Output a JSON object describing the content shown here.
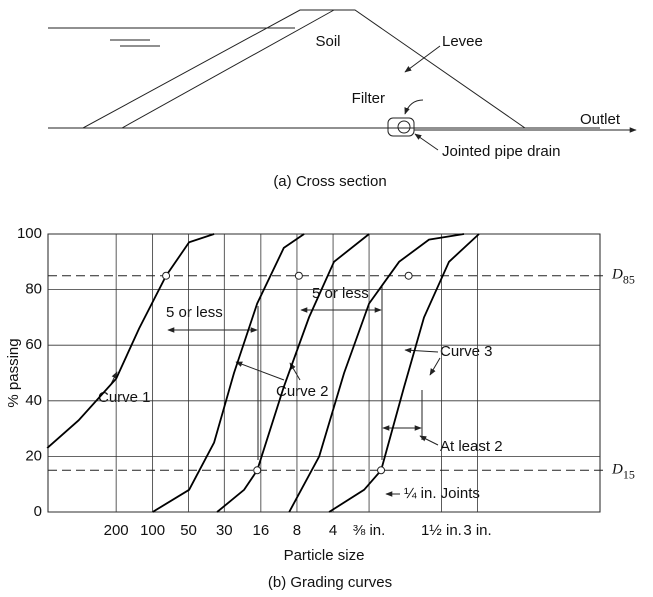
{
  "cross_section": {
    "labels": {
      "soil": "Soil",
      "levee": "Levee",
      "filter": "Filter",
      "outlet": "Outlet",
      "drain": "Jointed pipe drain"
    },
    "caption": "(a) Cross section"
  },
  "chart_data": {
    "type": "line",
    "xscale": "log",
    "grid": true,
    "color": "#000",
    "ylabel": "% passing",
    "xlabel": "Particle size",
    "caption": "(b) Grading curves",
    "xlim": [
      0.02,
      800
    ],
    "ylim": [
      0,
      100
    ],
    "yticks": [
      0,
      20,
      40,
      60,
      80,
      100
    ],
    "xticks": [
      {
        "value": 0.074,
        "label": "200"
      },
      {
        "value": 0.149,
        "label": "100"
      },
      {
        "value": 0.297,
        "label": "50"
      },
      {
        "value": 0.59,
        "label": "30"
      },
      {
        "value": 1.19,
        "label": "16"
      },
      {
        "value": 2.38,
        "label": "8"
      },
      {
        "value": 4.76,
        "label": "4"
      },
      {
        "value": 9.5,
        "label": "⅜ in."
      },
      {
        "value": 38.1,
        "label": "1½ in."
      },
      {
        "value": 76.2,
        "label": "3 in."
      }
    ],
    "series": [
      {
        "color": "#000",
        "x": [
          0.0197,
          0.036,
          0.074,
          0.115,
          0.193,
          0.3,
          0.485
        ],
        "values": [
          23,
          33,
          48,
          66,
          85,
          97,
          100
        ]
      },
      {
        "color": "#000",
        "x": [
          0.149,
          0.3,
          0.485,
          0.711,
          1.11,
          1.85,
          2.73
        ],
        "values": [
          0,
          8,
          25,
          50,
          75,
          95,
          100
        ]
      },
      {
        "color": "#000",
        "x": [
          0.514,
          0.863,
          1.11,
          1.85,
          3.0,
          4.85,
          9.5
        ],
        "values": [
          0,
          8,
          15,
          45,
          70,
          90,
          100
        ]
      },
      {
        "color": "#000",
        "x": [
          2.05,
          3.65,
          5.88,
          9.5,
          16.9,
          30.0,
          58.8
        ],
        "values": [
          0,
          20,
          50,
          75,
          90,
          98,
          100
        ]
      },
      {
        "color": "#000",
        "x": [
          4.41,
          8.63,
          11.96,
          18.6,
          27.3,
          44.1,
          78.4
        ],
        "values": [
          0,
          8,
          15,
          45,
          70,
          90,
          100
        ]
      }
    ],
    "markers": {
      "x": [
        0.193,
        2.47,
        1.11,
        20.3,
        11.96
      ],
      "y": [
        85,
        85,
        15,
        85,
        15
      ]
    },
    "reference_lines": [
      {
        "value": 85,
        "symbol": "D",
        "subscript": "85"
      },
      {
        "value": 15,
        "symbol": "D",
        "subscript": "15"
      }
    ],
    "annotations": [
      "Curve 1",
      "Curve 2",
      "Curve 3",
      "5 or less",
      "5 or less",
      "At least 2",
      "¼ in. Joints"
    ]
  }
}
